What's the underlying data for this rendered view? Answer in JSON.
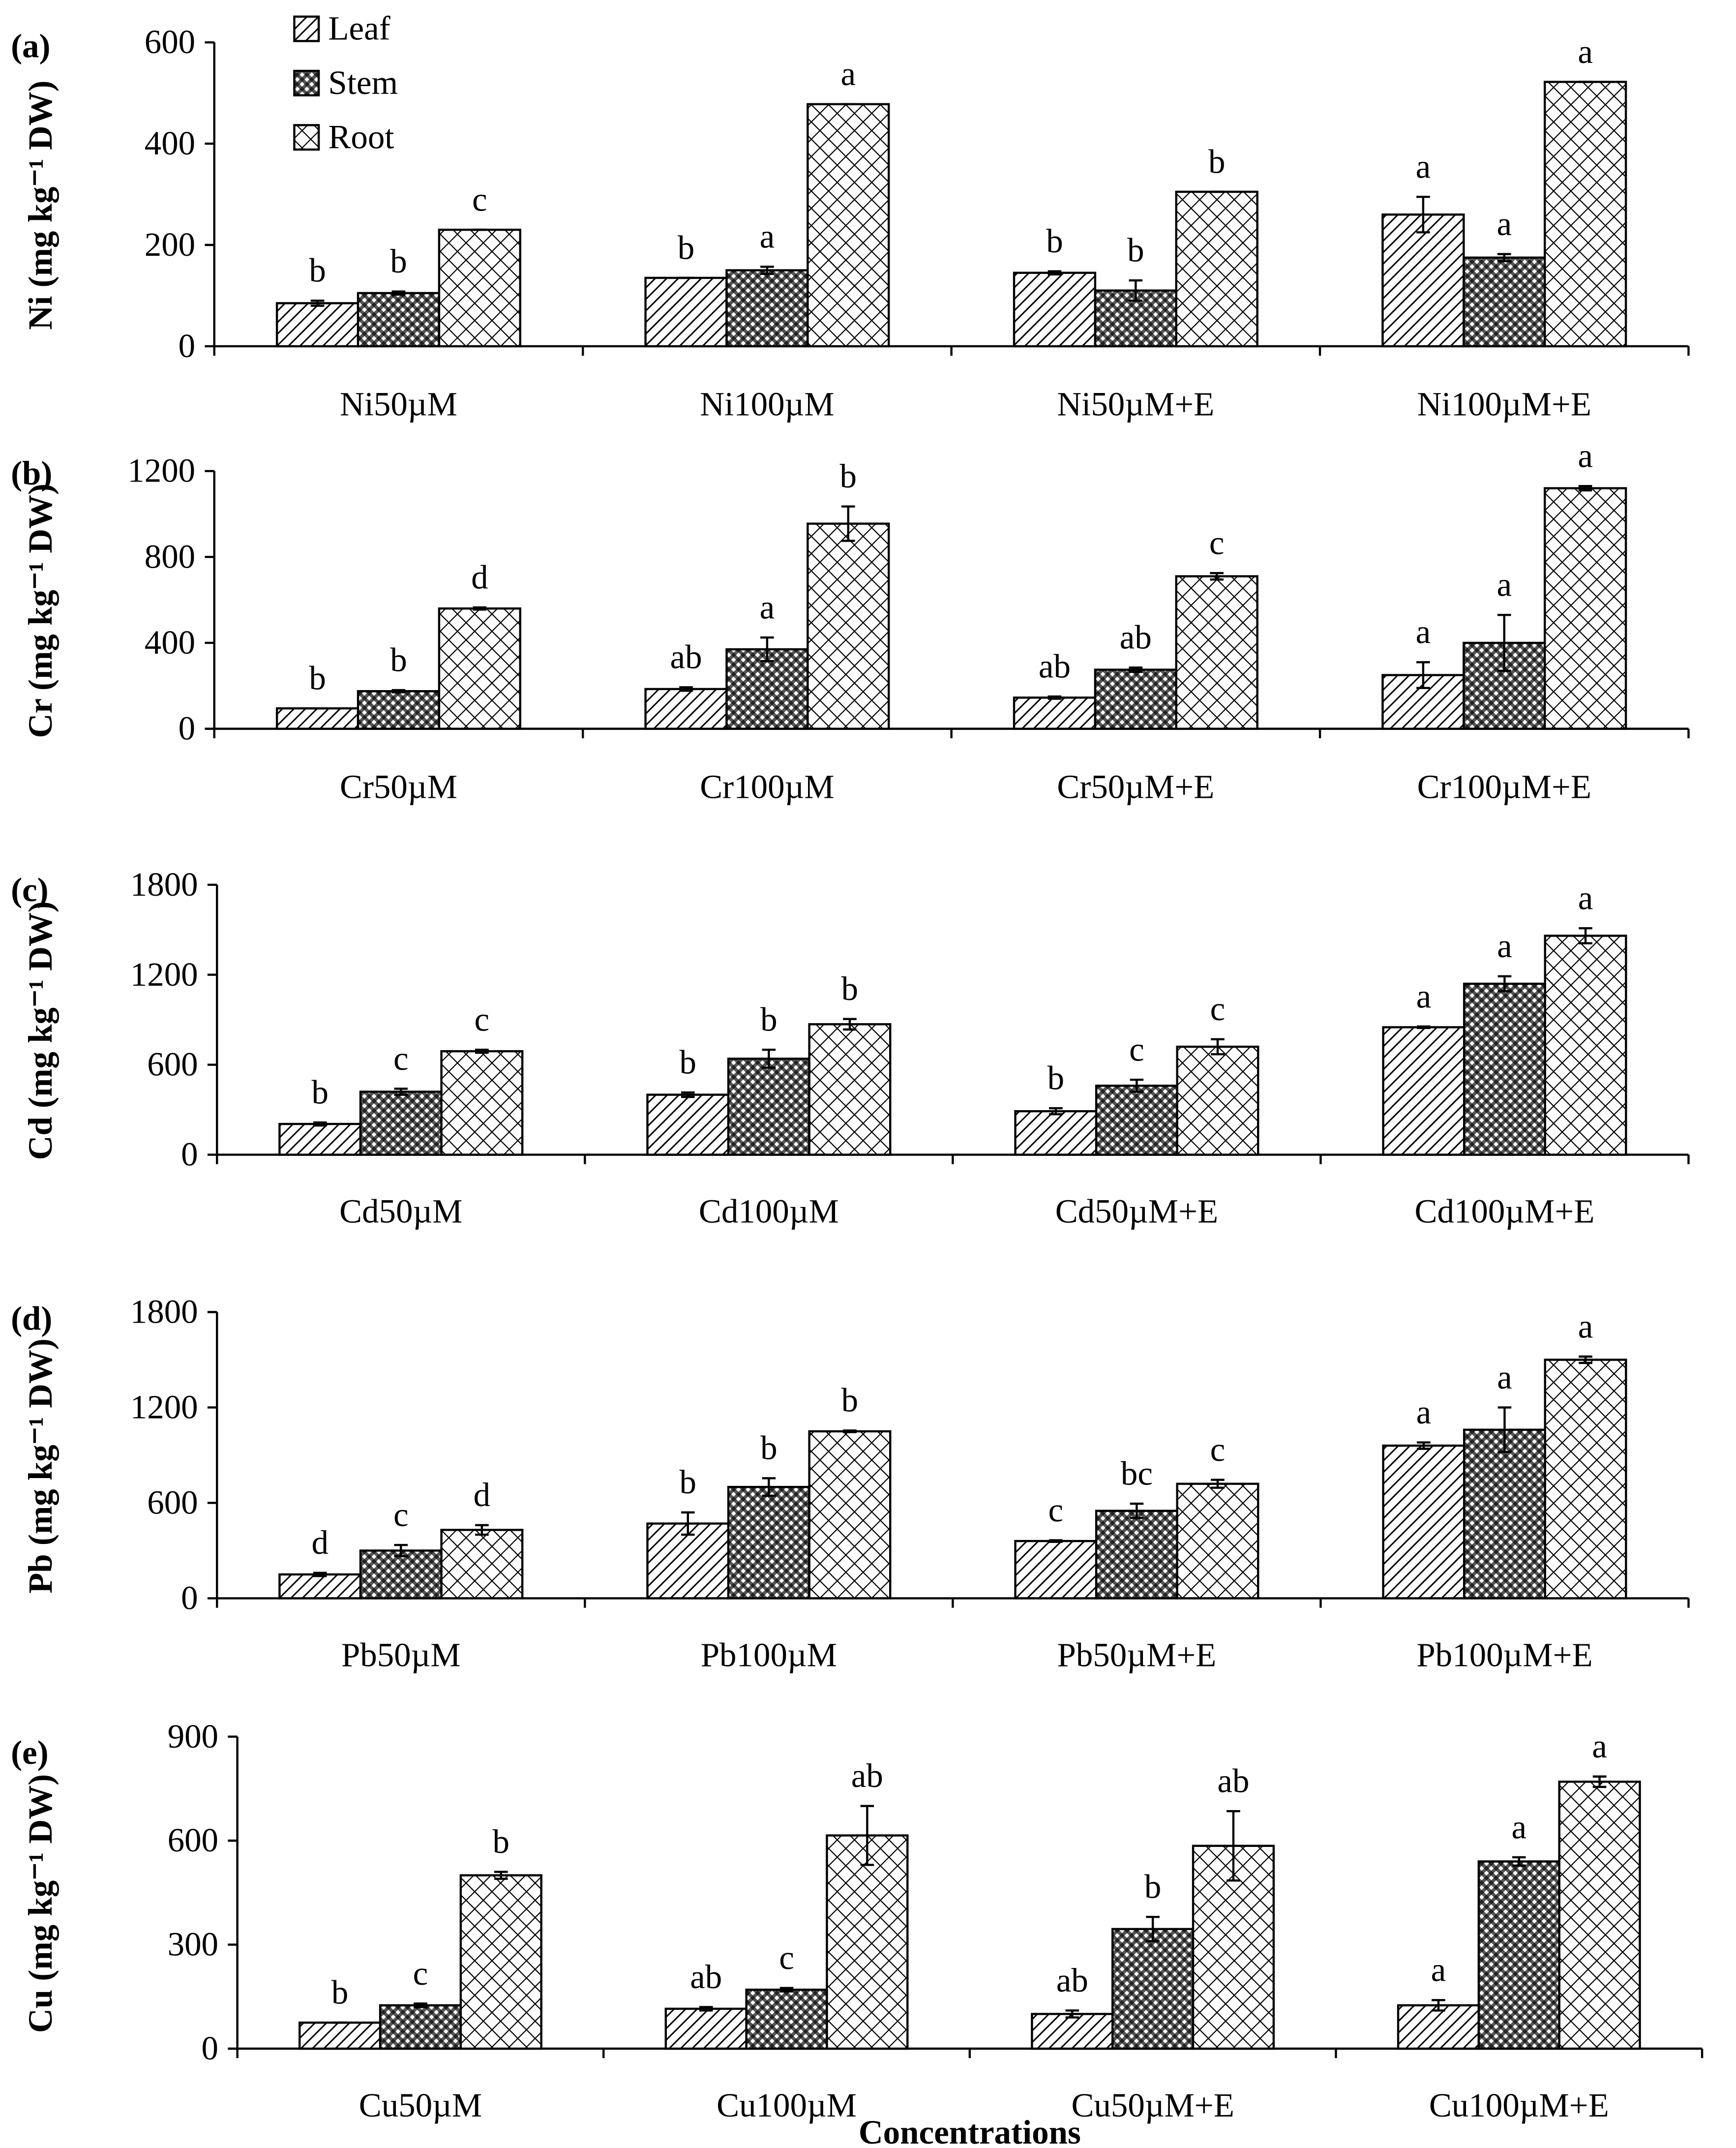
{
  "chart_data": [
    {
      "type": "bar",
      "panel_label": "(a)",
      "ylabel": "Ni (mg kg⁻¹ DW)",
      "legend": "upper left",
      "categories": [
        "Ni50µM",
        "Ni100µM",
        "Ni50µM+E",
        "Ni100µM+E"
      ],
      "series": [
        {
          "name": "Leaf",
          "pattern": "diagonal",
          "values": [
            85,
            135,
            145,
            260
          ],
          "errors": [
            5,
            0,
            3,
            35
          ],
          "letters": [
            "b",
            "b",
            "b",
            "a"
          ]
        },
        {
          "name": "Stem",
          "pattern": "checker",
          "values": [
            105,
            150,
            110,
            175
          ],
          "errors": [
            3,
            7,
            20,
            7
          ],
          "letters": [
            "b",
            "a",
            "b",
            "a"
          ]
        },
        {
          "name": "Root",
          "pattern": "crosshatch",
          "values": [
            230,
            478,
            305,
            522
          ],
          "errors": [
            0,
            0,
            0,
            0
          ],
          "letters": [
            "c",
            "a",
            "b",
            "a"
          ]
        }
      ],
      "ylim": [
        0,
        600
      ],
      "yticks": [
        0,
        200,
        400,
        600
      ]
    },
    {
      "type": "bar",
      "panel_label": "(b)",
      "ylabel": "Cr (mg kg⁻¹ DW)",
      "categories": [
        "Cr50µM",
        "Cr100µM",
        "Cr50µM+E",
        "Cr100µM+E"
      ],
      "series": [
        {
          "pattern": "diagonal",
          "values": [
            95,
            185,
            145,
            250
          ],
          "errors": [
            0,
            8,
            5,
            60
          ],
          "letters": [
            "b",
            "ab",
            "ab",
            "a"
          ]
        },
        {
          "pattern": "checker",
          "values": [
            175,
            370,
            275,
            400
          ],
          "errors": [
            5,
            55,
            10,
            130
          ],
          "letters": [
            "b",
            "a",
            "ab",
            "a"
          ]
        },
        {
          "pattern": "crosshatch",
          "values": [
            560,
            955,
            710,
            1120
          ],
          "errors": [
            5,
            80,
            15,
            10
          ],
          "letters": [
            "d",
            "b",
            "c",
            "a"
          ]
        }
      ],
      "ylim": [
        0,
        1200
      ],
      "yticks": [
        0,
        400,
        800,
        1200
      ]
    },
    {
      "type": "bar",
      "panel_label": "(c)",
      "ylabel": "Cd (mg kg⁻¹ DW)",
      "categories": [
        "Cd50µM",
        "Cd100µM",
        "Cd50µM+E",
        "Cd100µM+E"
      ],
      "series": [
        {
          "pattern": "diagonal",
          "values": [
            205,
            400,
            290,
            850
          ],
          "errors": [
            10,
            15,
            20,
            5
          ],
          "letters": [
            "b",
            "b",
            "b",
            "a"
          ]
        },
        {
          "pattern": "checker",
          "values": [
            420,
            640,
            460,
            1140
          ],
          "errors": [
            20,
            60,
            40,
            50
          ],
          "letters": [
            "c",
            "b",
            "c",
            "a"
          ]
        },
        {
          "pattern": "crosshatch",
          "values": [
            690,
            870,
            720,
            1460
          ],
          "errors": [
            10,
            35,
            50,
            50
          ],
          "letters": [
            "c",
            "b",
            "c",
            "a"
          ]
        }
      ],
      "ylim": [
        0,
        1800
      ],
      "yticks": [
        0,
        600,
        1200,
        1800
      ]
    },
    {
      "type": "bar",
      "panel_label": "(d)",
      "ylabel": "Pb (mg kg⁻¹ DW)",
      "categories": [
        "Pb50µM",
        "Pb100µM",
        "Pb50µM+E",
        "Pb100µM+E"
      ],
      "series": [
        {
          "pattern": "diagonal",
          "values": [
            150,
            470,
            360,
            960
          ],
          "errors": [
            10,
            70,
            5,
            20
          ],
          "letters": [
            "d",
            "b",
            "c",
            "a"
          ]
        },
        {
          "pattern": "checker",
          "values": [
            300,
            700,
            550,
            1060
          ],
          "errors": [
            35,
            55,
            45,
            140
          ],
          "letters": [
            "c",
            "b",
            "bc",
            "a"
          ]
        },
        {
          "pattern": "crosshatch",
          "values": [
            430,
            1050,
            720,
            1500
          ],
          "errors": [
            30,
            5,
            25,
            20
          ],
          "letters": [
            "d",
            "b",
            "c",
            "a"
          ]
        }
      ],
      "ylim": [
        0,
        1800
      ],
      "yticks": [
        0,
        600,
        1200,
        1800
      ]
    },
    {
      "type": "bar",
      "panel_label": "(e)",
      "ylabel": "Cu (mg kg⁻¹ DW)",
      "xlabel": "Concentrations",
      "categories": [
        "Cu50µM",
        "Cu100µM",
        "Cu50µM+E",
        "Cu100µM+E"
      ],
      "series": [
        {
          "pattern": "diagonal",
          "values": [
            75,
            115,
            100,
            125
          ],
          "errors": [
            0,
            5,
            10,
            15
          ],
          "letters": [
            "b",
            "ab",
            "ab",
            "a"
          ]
        },
        {
          "pattern": "checker",
          "values": [
            125,
            170,
            345,
            540
          ],
          "errors": [
            5,
            5,
            35,
            12
          ],
          "letters": [
            "c",
            "c",
            "b",
            "a"
          ]
        },
        {
          "pattern": "crosshatch",
          "values": [
            500,
            615,
            585,
            770
          ],
          "errors": [
            10,
            85,
            100,
            15
          ],
          "letters": [
            "b",
            "ab",
            "ab",
            "a"
          ]
        }
      ],
      "ylim": [
        0,
        900
      ],
      "yticks": [
        0,
        300,
        600,
        900
      ]
    }
  ]
}
